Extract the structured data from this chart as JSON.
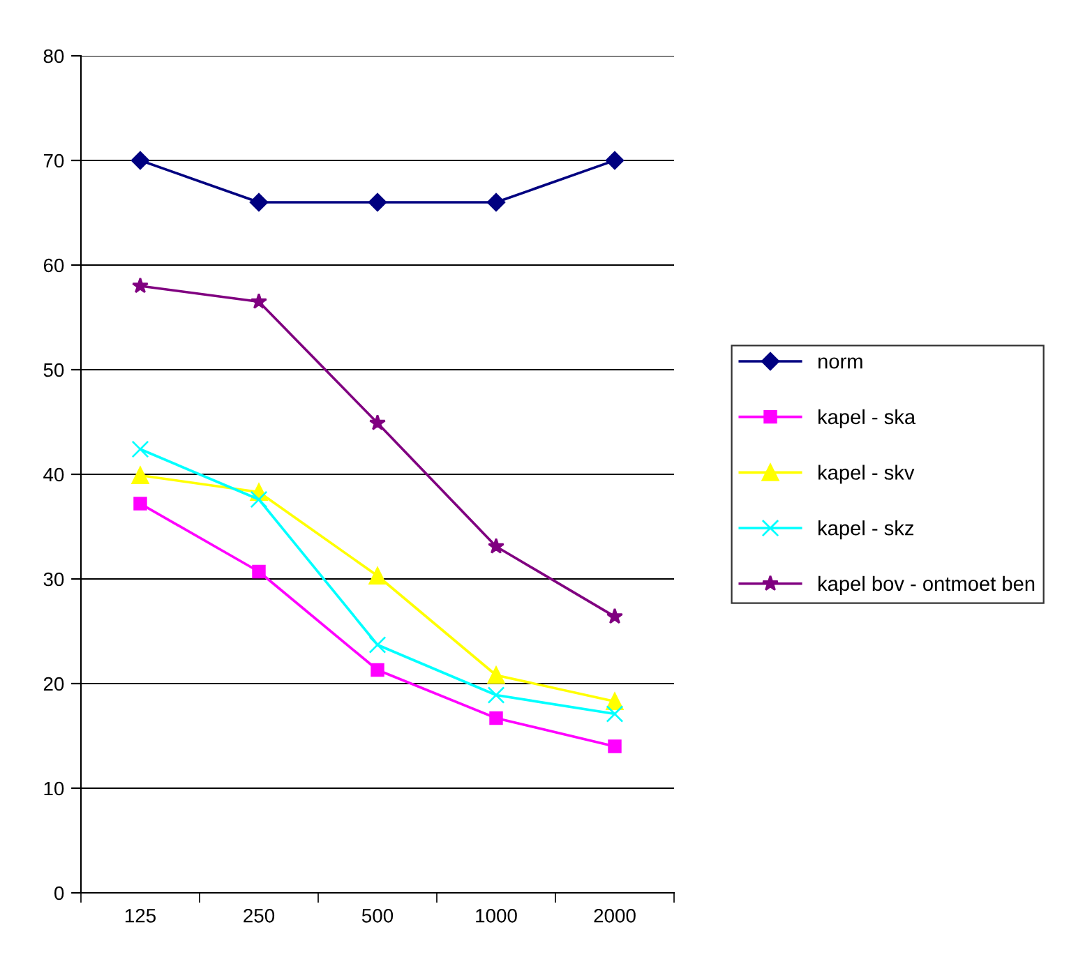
{
  "chart_data": {
    "type": "line",
    "categories": [
      "125",
      "250",
      "500",
      "1000",
      "2000"
    ],
    "series": [
      {
        "name": "norm",
        "color": "#000080",
        "marker": "diamond",
        "values": [
          70,
          66,
          66,
          66,
          70
        ]
      },
      {
        "name": "kapel - ska",
        "color": "#ff00ff",
        "marker": "square",
        "values": [
          37.2,
          30.7,
          21.3,
          16.7,
          14.0
        ]
      },
      {
        "name": "kapel - skv",
        "color": "#ffff00",
        "marker": "triangle",
        "values": [
          39.9,
          38.3,
          30.3,
          20.8,
          18.3
        ]
      },
      {
        "name": "kapel - skz",
        "color": "#00ffff",
        "marker": "cross",
        "values": [
          42.4,
          37.6,
          23.7,
          18.9,
          17.1
        ]
      },
      {
        "name": "kapel bov - ontmoet ben",
        "color": "#800080",
        "marker": "star",
        "values": [
          58.0,
          56.5,
          44.9,
          33.1,
          26.4
        ]
      }
    ],
    "ylim": [
      0,
      80
    ],
    "yticks": [
      0,
      10,
      20,
      30,
      40,
      50,
      60,
      70,
      80
    ],
    "grid": "y",
    "legend": "right",
    "line_style": "solid"
  }
}
